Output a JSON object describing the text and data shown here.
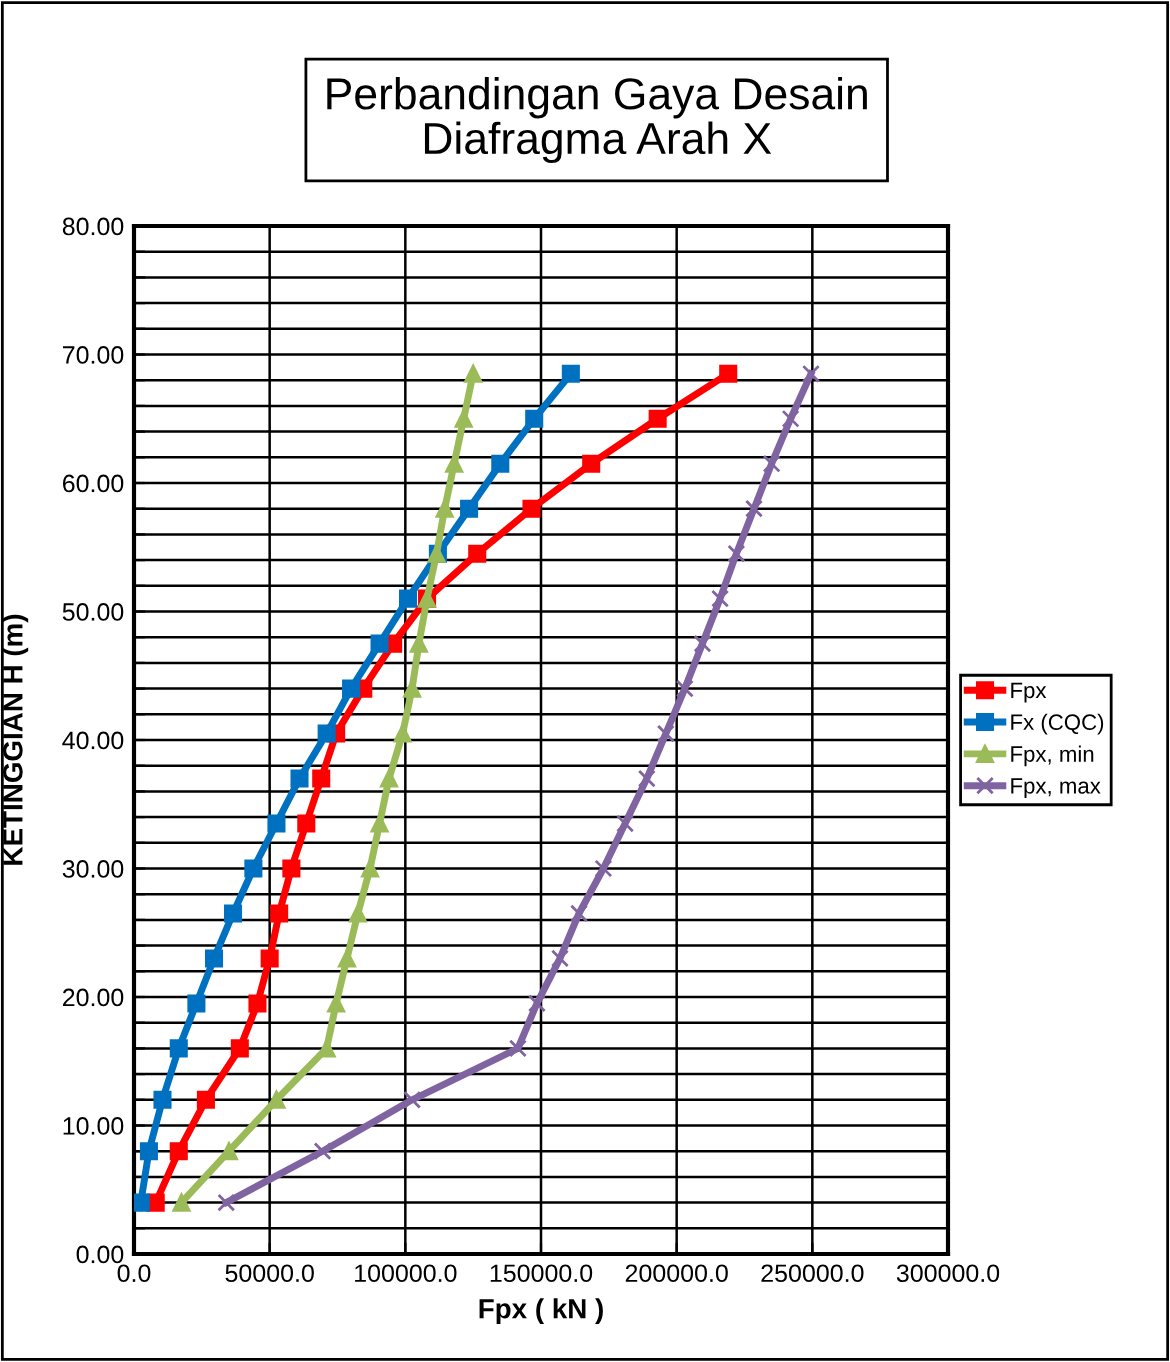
{
  "chart_data": {
    "type": "line",
    "title": "Perbandingan Gaya Desain\nDiafragma Arah X",
    "xlabel": "Fpx ( kN )",
    "ylabel": "KETINGGIAN H (m)",
    "xlim": [
      0,
      300000
    ],
    "ylim": [
      0,
      80
    ],
    "xticks": [
      {
        "value": 0,
        "label": "0.0"
      },
      {
        "value": 50000,
        "label": "50000.0"
      },
      {
        "value": 100000,
        "label": "100000.0"
      },
      {
        "value": 150000,
        "label": "150000.0"
      },
      {
        "value": 200000,
        "label": "200000.0"
      },
      {
        "value": 250000,
        "label": "250000.0"
      },
      {
        "value": 300000,
        "label": "300000.0"
      }
    ],
    "yticks": [
      {
        "value": 0,
        "label": "0.00"
      },
      {
        "value": 2,
        "label": null
      },
      {
        "value": 4,
        "label": null
      },
      {
        "value": 6,
        "label": null
      },
      {
        "value": 8,
        "label": null
      },
      {
        "value": 10,
        "label": "10.00"
      },
      {
        "value": 12,
        "label": null
      },
      {
        "value": 14,
        "label": null
      },
      {
        "value": 16,
        "label": null
      },
      {
        "value": 18,
        "label": null
      },
      {
        "value": 20,
        "label": "20.00"
      },
      {
        "value": 22,
        "label": null
      },
      {
        "value": 24,
        "label": null
      },
      {
        "value": 26,
        "label": null
      },
      {
        "value": 28,
        "label": null
      },
      {
        "value": 30,
        "label": "30.00"
      },
      {
        "value": 32,
        "label": null
      },
      {
        "value": 34,
        "label": null
      },
      {
        "value": 36,
        "label": null
      },
      {
        "value": 38,
        "label": null
      },
      {
        "value": 40,
        "label": "40.00"
      },
      {
        "value": 42,
        "label": null
      },
      {
        "value": 44,
        "label": null
      },
      {
        "value": 46,
        "label": null
      },
      {
        "value": 48,
        "label": null
      },
      {
        "value": 50,
        "label": "50.00"
      },
      {
        "value": 52,
        "label": null
      },
      {
        "value": 54,
        "label": null
      },
      {
        "value": 56,
        "label": null
      },
      {
        "value": 58,
        "label": null
      },
      {
        "value": 60,
        "label": "60.00"
      },
      {
        "value": 62,
        "label": null
      },
      {
        "value": 64,
        "label": null
      },
      {
        "value": 66,
        "label": null
      },
      {
        "value": 68,
        "label": null
      },
      {
        "value": 70,
        "label": "70.00"
      },
      {
        "value": 72,
        "label": null
      },
      {
        "value": 74,
        "label": null
      },
      {
        "value": 76,
        "label": null
      },
      {
        "value": 78,
        "label": null
      },
      {
        "value": 80,
        "label": "80.00"
      }
    ],
    "grid": true,
    "legend": "right",
    "line_style": "solid",
    "series": [
      {
        "name": "Fpx",
        "color": "#ff0000",
        "marker": "square",
        "x": [
          8000,
          16500,
          26500,
          39000,
          45500,
          50000,
          53500,
          58000,
          63500,
          69000,
          74500,
          84500,
          95500,
          108000,
          126500,
          146500,
          168500,
          193000,
          219000
        ],
        "values": [
          4,
          8,
          12,
          16,
          19.5,
          23,
          26.5,
          30,
          33.5,
          37,
          40.5,
          44,
          47.5,
          51,
          54.5,
          58,
          61.5,
          65,
          68.5
        ]
      },
      {
        "name": "Fx (CQC)",
        "color": "#0070c0",
        "marker": "square",
        "x": [
          2500,
          5500,
          10500,
          16500,
          23000,
          29500,
          36500,
          44000,
          52500,
          61000,
          71000,
          80000,
          90500,
          101000,
          112000,
          123500,
          135000,
          147500,
          161000
        ],
        "values": [
          4,
          8,
          12,
          16,
          19.5,
          23,
          26.5,
          30,
          33.5,
          37,
          40.5,
          44,
          47.5,
          51,
          54.5,
          58,
          61.5,
          65,
          68.5
        ]
      },
      {
        "name": "Fpx, min",
        "color": "#9bbb59",
        "marker": "triangle",
        "x": [
          17500,
          35000,
          52500,
          71000,
          74500,
          78500,
          82500,
          87000,
          90500,
          94000,
          99000,
          102500,
          105000,
          108000,
          111500,
          114500,
          118000,
          121500,
          125000
        ],
        "values": [
          4,
          8,
          12,
          16,
          19.5,
          23,
          26.5,
          30,
          33.5,
          37,
          40.5,
          44,
          47.5,
          51,
          54.5,
          58,
          61.5,
          65,
          68.5
        ]
      },
      {
        "name": "Fpx, max",
        "color": "#8064a2",
        "marker": "cross",
        "x": [
          34000,
          69500,
          102500,
          141500,
          148500,
          157000,
          164000,
          173000,
          181000,
          189000,
          196000,
          203000,
          209500,
          216000,
          222000,
          228500,
          235000,
          242000,
          249500
        ],
        "values": [
          4,
          8,
          12,
          16,
          19.5,
          23,
          26.5,
          30,
          33.5,
          37,
          40.5,
          44,
          47.5,
          51,
          54.5,
          58,
          61.5,
          65,
          68.5
        ]
      }
    ]
  }
}
